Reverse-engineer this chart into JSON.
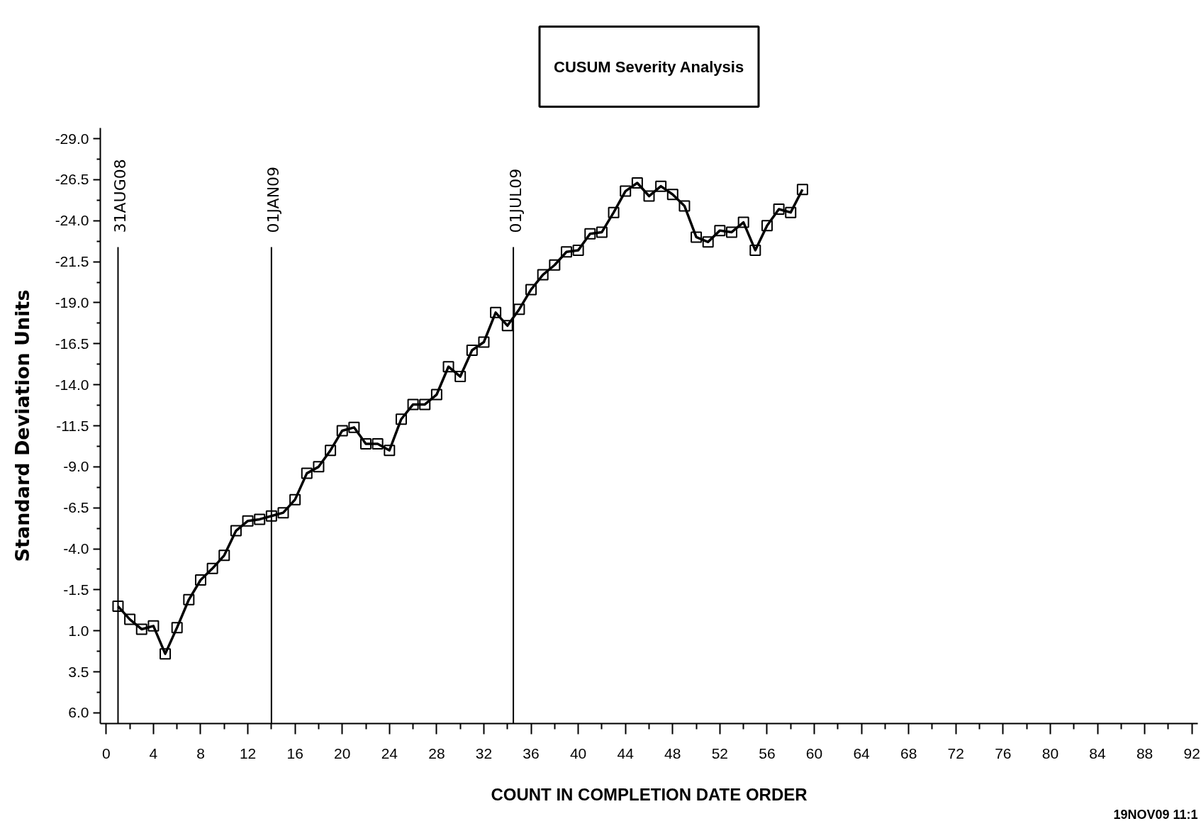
{
  "chart_data": {
    "type": "line",
    "title": "CUSUM Severity Analysis",
    "xlabel": "COUNT IN COMPLETION DATE ORDER",
    "ylabel": "Standard Deviation Units",
    "x": [
      1,
      2,
      3,
      4,
      5,
      6,
      7,
      8,
      9,
      10,
      11,
      12,
      13,
      14,
      15,
      16,
      17,
      18,
      19,
      20,
      21,
      22,
      23,
      24,
      25,
      26,
      27,
      28,
      29,
      30,
      31,
      32,
      33,
      34,
      35,
      36,
      37,
      38,
      39,
      40,
      41,
      42,
      43,
      44,
      45,
      46,
      47,
      48,
      49,
      50,
      51,
      52,
      53,
      54,
      55,
      56,
      57,
      58,
      59
    ],
    "series": [
      {
        "color": "#000000",
        "values": [
          -0.5,
          0.3,
          0.9,
          0.7,
          2.4,
          0.8,
          -0.9,
          -2.1,
          -2.8,
          -3.6,
          -5.1,
          -5.7,
          -5.8,
          -6.0,
          -6.2,
          -7.0,
          -8.6,
          -9.0,
          -10.0,
          -11.2,
          -11.4,
          -10.4,
          -10.4,
          -10.0,
          -11.9,
          -12.8,
          -12.8,
          -13.4,
          -15.1,
          -14.5,
          -16.1,
          -16.6,
          -18.4,
          -17.6,
          -18.6,
          -19.8,
          -20.7,
          -21.3,
          -22.1,
          -22.2,
          -23.2,
          -23.3,
          -24.5,
          -25.8,
          -26.3,
          -25.5,
          -26.1,
          -25.6,
          -24.9,
          -23.0,
          -22.7,
          -23.4,
          -23.3,
          -23.9,
          -22.2,
          -23.7,
          -24.7,
          -24.5,
          -25.9
        ]
      }
    ],
    "xlim": [
      -0.5,
      92.5
    ],
    "ylim": [
      6.65,
      -29.65
    ],
    "xticks": [
      0,
      {
        "value": 2,
        "label": null
      },
      4,
      {
        "value": 6,
        "label": null
      },
      8,
      {
        "value": 10,
        "label": null
      },
      12,
      {
        "value": 14,
        "label": null
      },
      16,
      {
        "value": 18,
        "label": null
      },
      20,
      {
        "value": 22,
        "label": null
      },
      24,
      {
        "value": 26,
        "label": null
      },
      28,
      {
        "value": 30,
        "label": null
      },
      32,
      {
        "value": 34,
        "label": null
      },
      36,
      {
        "value": 38,
        "label": null
      },
      40,
      {
        "value": 42,
        "label": null
      },
      44,
      {
        "value": 46,
        "label": null
      },
      48,
      {
        "value": 50,
        "label": null
      },
      52,
      {
        "value": 54,
        "label": null
      },
      56,
      {
        "value": 58,
        "label": null
      },
      60,
      {
        "value": 62,
        "label": null
      },
      64,
      {
        "value": 66,
        "label": null
      },
      68,
      {
        "value": 70,
        "label": null
      },
      72,
      {
        "value": 74,
        "label": null
      },
      76,
      {
        "value": 78,
        "label": null
      },
      80,
      {
        "value": 82,
        "label": null
      },
      84,
      {
        "value": 86,
        "label": null
      },
      88,
      {
        "value": 90,
        "label": null
      },
      92
    ],
    "yticks": [
      {
        "value": -29,
        "label": "-29.0"
      },
      {
        "value": -27.75,
        "label": null
      },
      {
        "value": -26.5,
        "label": "-26.5"
      },
      {
        "value": -25.25,
        "label": null
      },
      {
        "value": -24,
        "label": "-24.0"
      },
      {
        "value": -22.75,
        "label": null
      },
      {
        "value": -21.5,
        "label": "-21.5"
      },
      {
        "value": -20.25,
        "label": null
      },
      {
        "value": -19,
        "label": "-19.0"
      },
      {
        "value": -17.75,
        "label": null
      },
      {
        "value": -16.5,
        "label": "-16.5"
      },
      {
        "value": -15.25,
        "label": null
      },
      {
        "value": -14,
        "label": "-14.0"
      },
      {
        "value": -12.75,
        "label": null
      },
      {
        "value": -11.5,
        "label": "-11.5"
      },
      {
        "value": -10.25,
        "label": null
      },
      {
        "value": -9,
        "label": "-9.0"
      },
      {
        "value": -7.75,
        "label": null
      },
      {
        "value": -6.5,
        "label": "-6.5"
      },
      {
        "value": -5.25,
        "label": null
      },
      {
        "value": -4,
        "label": "-4.0"
      },
      {
        "value": -2.75,
        "label": null
      },
      {
        "value": -1.5,
        "label": "-1.5"
      },
      {
        "value": -0.25,
        "label": null
      },
      {
        "value": 1,
        "label": "1.0"
      },
      {
        "value": 2.25,
        "label": null
      },
      {
        "value": 3.5,
        "label": "3.5"
      },
      {
        "value": 4.75,
        "label": null
      },
      {
        "value": 6,
        "label": "6.0"
      }
    ],
    "ref_lines": [
      {
        "axis": "x",
        "value": 1,
        "label": "31AUG08",
        "color": "#000000"
      },
      {
        "axis": "x",
        "value": 14,
        "label": "01JAN09",
        "color": "#000000"
      },
      {
        "axis": "x",
        "value": 34.5,
        "label": "01JUL09",
        "color": "#000000"
      }
    ],
    "marker": "square",
    "line_style": "solid",
    "grid": false,
    "annotations": [
      "19NOV09 11:1"
    ]
  }
}
